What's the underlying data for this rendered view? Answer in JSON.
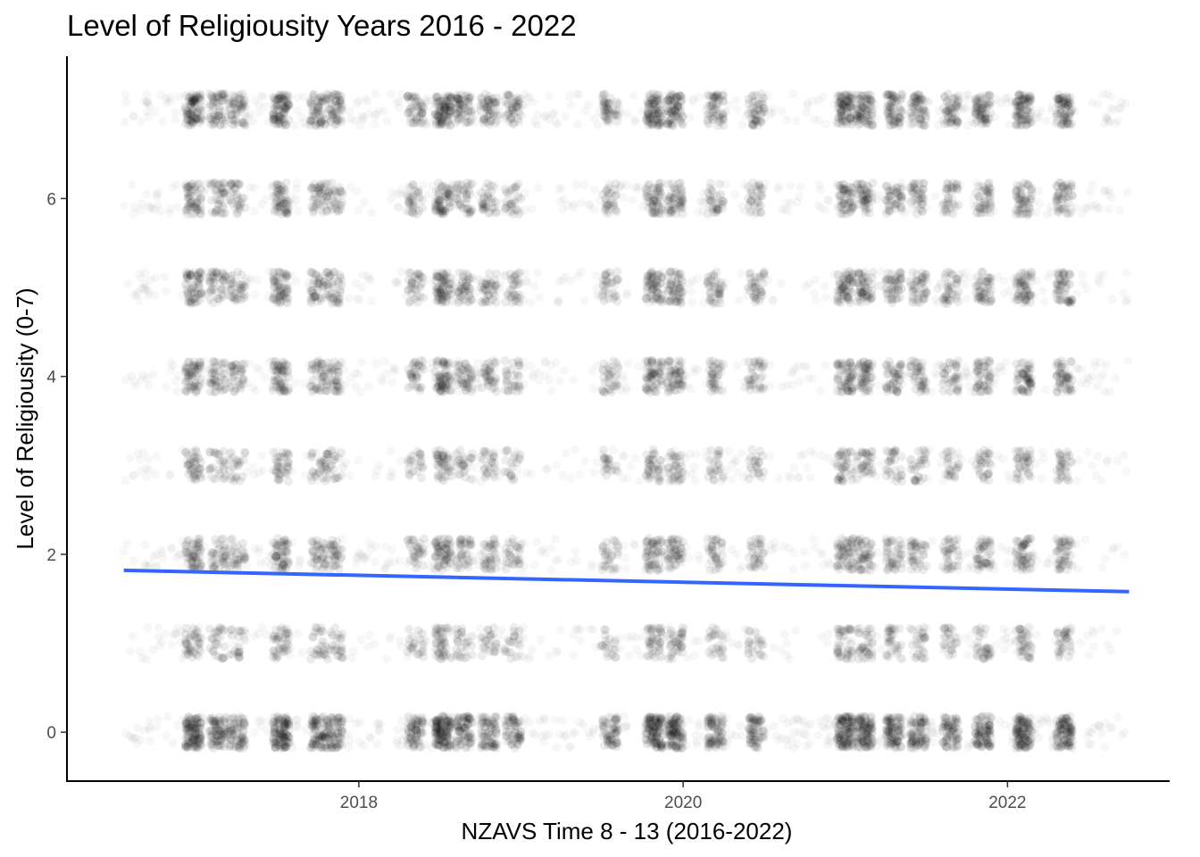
{
  "chart_data": {
    "type": "scatter",
    "title": "Level of Religiousity Years 2016 - 2022",
    "xlabel": "NZAVS Time 8 - 13 (2016-2022)",
    "ylabel": "Level of Religiousity (0-7)",
    "x_ticks": [
      "2018",
      "2020",
      "2022"
    ],
    "y_ticks": [
      "0",
      "2",
      "4",
      "6"
    ],
    "x_tick_values": [
      2018,
      2020,
      2022
    ],
    "y_tick_values": [
      0,
      2,
      4,
      6
    ],
    "xlim": [
      2016.2,
      2023.0
    ],
    "ylim": [
      -0.55,
      7.6
    ],
    "grid": false,
    "y_levels": [
      0,
      1,
      2,
      3,
      4,
      5,
      6,
      7
    ],
    "x_range": [
      2016.55,
      2022.75
    ],
    "point_color": "#000000",
    "point_alpha": 0.03,
    "dense_x_clusters": [
      {
        "x": 2016.98,
        "weight": 0.9
      },
      {
        "x": 2017.13,
        "weight": 0.6
      },
      {
        "x": 2017.25,
        "weight": 0.5
      },
      {
        "x": 2017.52,
        "weight": 0.9
      },
      {
        "x": 2017.75,
        "weight": 0.6
      },
      {
        "x": 2017.85,
        "weight": 0.55
      },
      {
        "x": 2018.35,
        "weight": 0.5
      },
      {
        "x": 2018.52,
        "weight": 1.0
      },
      {
        "x": 2018.65,
        "weight": 0.6
      },
      {
        "x": 2018.8,
        "weight": 0.55
      },
      {
        "x": 2018.95,
        "weight": 0.45
      },
      {
        "x": 2019.55,
        "weight": 0.45
      },
      {
        "x": 2019.82,
        "weight": 0.9
      },
      {
        "x": 2019.95,
        "weight": 0.8
      },
      {
        "x": 2020.2,
        "weight": 0.55
      },
      {
        "x": 2020.45,
        "weight": 0.5
      },
      {
        "x": 2021.0,
        "weight": 0.9
      },
      {
        "x": 2021.12,
        "weight": 0.8
      },
      {
        "x": 2021.3,
        "weight": 0.7
      },
      {
        "x": 2021.45,
        "weight": 0.6
      },
      {
        "x": 2021.65,
        "weight": 0.55
      },
      {
        "x": 2021.85,
        "weight": 0.7
      },
      {
        "x": 2022.1,
        "weight": 0.85
      },
      {
        "x": 2022.35,
        "weight": 0.75
      }
    ],
    "level_density": [
      1.0,
      0.35,
      0.5,
      0.35,
      0.55,
      0.55,
      0.5,
      0.75
    ],
    "trend_line": {
      "color": "#3366FF",
      "x": [
        2016.55,
        2022.75
      ],
      "y": [
        1.82,
        1.58
      ]
    }
  }
}
